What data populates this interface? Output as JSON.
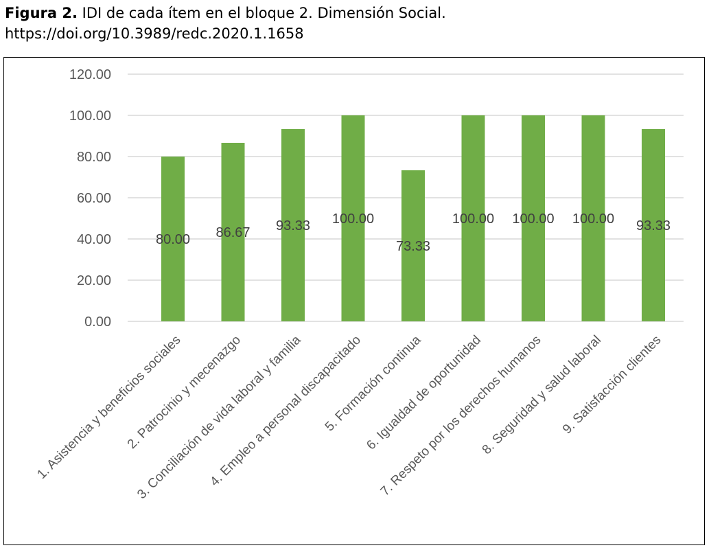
{
  "caption": {
    "label": "Figura 2.",
    "text": " IDI de cada ítem en el bloque 2. Dimensión Social.",
    "doi": "https://doi.org/10.3989/redc.2020.1.1658"
  },
  "chart_data": {
    "type": "bar",
    "title": "",
    "xlabel": "",
    "ylabel": "",
    "ylim": [
      0,
      120
    ],
    "yticks": [
      "0.00",
      "20.00",
      "40.00",
      "60.00",
      "80.00",
      "100.00",
      "120.00"
    ],
    "grid": true,
    "legend": "none",
    "bar_color": "#70AD47",
    "categories": [
      "1. Asistencia y beneficios sociales",
      "2. Patrocinio y mecenazgo",
      "3. Conciliación de vida laboral y familia",
      "4. Empleo a personal discapacitado",
      "5. Formación continua",
      "6. Igualdad de oportunidad",
      "7. Respeto por los derechos humanos",
      "8. Seguridad y salud laboral",
      "9. Satisfacción clientes"
    ],
    "values": [
      80.0,
      86.67,
      93.33,
      100.0,
      73.33,
      100.0,
      100.0,
      100.0,
      93.33
    ],
    "value_labels": [
      "80.00",
      "86.67",
      "93.33",
      "100.00",
      "73.33",
      "100.00",
      "100.00",
      "100.00",
      "93.33"
    ]
  }
}
